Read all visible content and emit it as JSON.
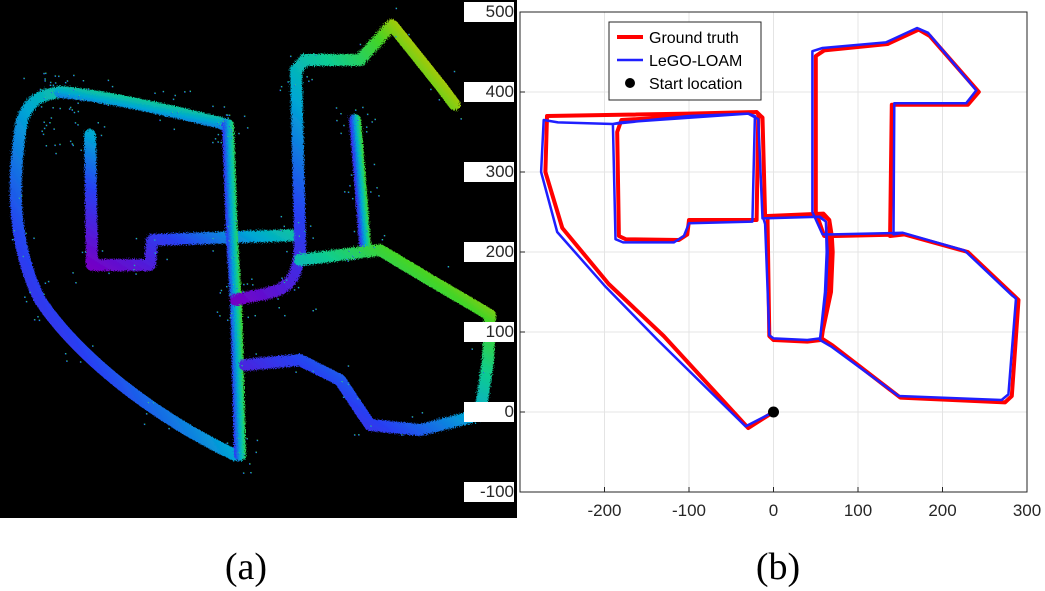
{
  "captions": {
    "a": "(a)",
    "b": "(b)"
  },
  "point_cloud": {
    "description_colors": [
      "#6a00c8",
      "#2a3cff",
      "#00a8e0",
      "#10d8a0",
      "#40e020",
      "#c8d000",
      "#ff6a00"
    ]
  },
  "chart_data": {
    "type": "line",
    "title": "",
    "xlabel": "",
    "ylabel": "",
    "xlim": [
      -300,
      300
    ],
    "ylim": [
      -100,
      500
    ],
    "xticks": [
      "-200",
      "-100",
      "0",
      "100",
      "200",
      "300"
    ],
    "yticks": [
      "-100",
      "0",
      "100",
      "200",
      "300",
      "400",
      "500"
    ],
    "grid": true,
    "legend_position": "top-left",
    "legend": [
      "Ground truth",
      "LeGO-LOAM",
      "Start location"
    ],
    "series": [
      {
        "name": "Ground truth",
        "color": "#ff0000",
        "points": [
          [
            0,
            0
          ],
          [
            -30,
            -20
          ],
          [
            -130,
            95
          ],
          [
            -195,
            160
          ],
          [
            -250,
            230
          ],
          [
            -270,
            300
          ],
          [
            -268,
            370
          ],
          [
            -100,
            373
          ],
          [
            -20,
            375
          ],
          [
            -18,
            372
          ],
          [
            -20,
            240
          ],
          [
            -100,
            240
          ],
          [
            -102,
            222
          ],
          [
            -112,
            215
          ],
          [
            -175,
            216
          ],
          [
            -183,
            220
          ],
          [
            -185,
            350
          ],
          [
            -180,
            365
          ],
          [
            -20,
            375
          ],
          [
            -13,
            368
          ],
          [
            -10,
            245
          ],
          [
            60,
            245
          ],
          [
            66,
            240
          ],
          [
            69,
            220
          ],
          [
            70,
            200
          ],
          [
            68,
            150
          ],
          [
            56,
            90
          ],
          [
            40,
            88
          ],
          [
            0,
            90
          ],
          [
            -5,
            95
          ],
          [
            -7,
            235
          ],
          [
            -7,
            245
          ],
          [
            59,
            248
          ],
          [
            66,
            240
          ],
          [
            67,
            200
          ],
          [
            65,
            150
          ],
          [
            57,
            92
          ],
          [
            70,
            83
          ],
          [
            150,
            18
          ],
          [
            274,
            12
          ],
          [
            282,
            20
          ],
          [
            290,
            140
          ],
          [
            285,
            145
          ],
          [
            230,
            200
          ],
          [
            155,
            222
          ],
          [
            73,
            220
          ],
          [
            60,
            220
          ],
          [
            50,
            250
          ],
          [
            50,
            445
          ],
          [
            60,
            452
          ],
          [
            135,
            460
          ],
          [
            172,
            478
          ],
          [
            185,
            470
          ],
          [
            243,
            400
          ],
          [
            230,
            384
          ],
          [
            180,
            384
          ],
          [
            140,
            384
          ],
          [
            138,
            220
          ],
          [
            155,
            222
          ]
        ]
      },
      {
        "name": "LeGO-LOAM",
        "color": "#1f1fff",
        "points": [
          [
            0,
            0
          ],
          [
            -33,
            -18
          ],
          [
            -137,
            90
          ],
          [
            -200,
            158
          ],
          [
            -256,
            225
          ],
          [
            -275,
            300
          ],
          [
            -272,
            365
          ],
          [
            -255,
            362
          ],
          [
            -190,
            360
          ],
          [
            -100,
            370
          ],
          [
            -30,
            373
          ],
          [
            -22,
            370
          ],
          [
            -25,
            238
          ],
          [
            -100,
            236
          ],
          [
            -106,
            220
          ],
          [
            -118,
            212
          ],
          [
            -178,
            212
          ],
          [
            -187,
            216
          ],
          [
            -190,
            360
          ],
          [
            -180,
            362
          ],
          [
            -30,
            373
          ],
          [
            -18,
            366
          ],
          [
            -13,
            242
          ],
          [
            55,
            244
          ],
          [
            62,
            238
          ],
          [
            64,
            200
          ],
          [
            62,
            150
          ],
          [
            55,
            92
          ],
          [
            40,
            90
          ],
          [
            0,
            92
          ],
          [
            -5,
            96
          ],
          [
            -10,
            235
          ],
          [
            -12,
            242
          ],
          [
            54,
            244
          ],
          [
            62,
            238
          ],
          [
            63,
            200
          ],
          [
            61,
            150
          ],
          [
            55,
            90
          ],
          [
            68,
            82
          ],
          [
            148,
            20
          ],
          [
            270,
            15
          ],
          [
            278,
            22
          ],
          [
            287,
            142
          ],
          [
            282,
            146
          ],
          [
            226,
            202
          ],
          [
            153,
            224
          ],
          [
            70,
            222
          ],
          [
            58,
            222
          ],
          [
            46,
            250
          ],
          [
            46,
            451
          ],
          [
            58,
            455
          ],
          [
            133,
            462
          ],
          [
            170,
            480
          ],
          [
            183,
            474
          ],
          [
            240,
            402
          ],
          [
            228,
            386
          ],
          [
            178,
            386
          ],
          [
            143,
            386
          ],
          [
            142,
            222
          ],
          [
            153,
            224
          ]
        ]
      }
    ],
    "markers": [
      {
        "name": "Start location",
        "x": 0,
        "y": 0,
        "color": "#000000"
      }
    ]
  }
}
